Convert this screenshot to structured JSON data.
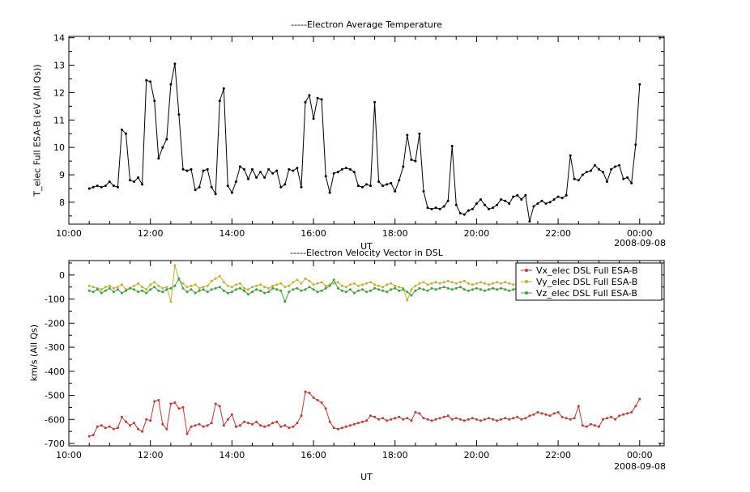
{
  "colors": {
    "background": "#ffffff",
    "frame": "#000000"
  },
  "chart_data": [
    {
      "type": "line",
      "title": "-----Electron Average Temperature",
      "ylabel": "T_elec Full ESA-B (eV (All Qs))",
      "xlabel": "UT",
      "date_label": "2008-09-08",
      "xmin": 10,
      "xmax": 24.6,
      "ymin": 7.2,
      "ymax": 14.05,
      "xticks": [
        10,
        12,
        14,
        16,
        18,
        20,
        22,
        24
      ],
      "xtick_labels": [
        "10:00",
        "12:00",
        "14:00",
        "16:00",
        "18:00",
        "20:00",
        "22:00",
        "00:00"
      ],
      "yticks": [
        8,
        9,
        10,
        11,
        12,
        13,
        14
      ],
      "ytick_labels": [
        "8",
        "9",
        "10",
        "11",
        "12",
        "13",
        "14"
      ],
      "xminor_step": 0.5,
      "yminor_step": 0.5,
      "legend": null,
      "series": [
        {
          "name": "T_elec Full ESA-B",
          "color": "#000000",
          "tstart": 10.5,
          "tstep": 0.1,
          "values": [
            8.5,
            8.55,
            8.6,
            8.55,
            8.6,
            8.75,
            8.6,
            8.55,
            10.65,
            10.5,
            8.8,
            8.75,
            8.9,
            8.65,
            12.45,
            12.4,
            11.7,
            9.6,
            10.0,
            10.3,
            12.3,
            13.05,
            11.2,
            9.2,
            9.15,
            9.2,
            8.45,
            8.55,
            9.15,
            9.2,
            8.55,
            8.3,
            11.7,
            12.15,
            8.6,
            8.35,
            8.75,
            9.3,
            9.2,
            8.85,
            9.2,
            8.9,
            9.1,
            8.9,
            9.2,
            9.05,
            9.15,
            8.55,
            8.65,
            9.2,
            9.15,
            9.25,
            8.55,
            11.65,
            11.9,
            11.05,
            11.8,
            11.75,
            8.95,
            8.35,
            9.05,
            9.1,
            9.2,
            9.25,
            9.2,
            9.1,
            8.6,
            8.55,
            8.65,
            8.6,
            11.65,
            8.75,
            8.6,
            8.65,
            8.7,
            8.4,
            8.8,
            9.3,
            10.45,
            9.55,
            9.5,
            10.5,
            8.4,
            7.8,
            7.75,
            7.8,
            7.75,
            7.85,
            8.05,
            10.05,
            7.9,
            7.6,
            7.55,
            7.7,
            7.75,
            7.95,
            8.1,
            7.9,
            7.75,
            7.8,
            7.9,
            8.1,
            8.05,
            7.95,
            8.2,
            8.25,
            8.1,
            8.25,
            7.3,
            7.85,
            7.95,
            8.05,
            7.95,
            8.0,
            8.1,
            8.2,
            8.15,
            8.25,
            9.7,
            8.85,
            8.8,
            9.0,
            9.1,
            9.15,
            9.35,
            9.2,
            9.1,
            8.75,
            9.2,
            9.3,
            9.35,
            8.85,
            8.9,
            8.7,
            10.1,
            12.3
          ]
        }
      ]
    },
    {
      "type": "line",
      "title": "-----Electron Velocity Vector in DSL",
      "ylabel": "km/s (All Qs)",
      "xlabel": "UT",
      "date_label": "2008-09-08",
      "xmin": 10,
      "xmax": 24.6,
      "ymin": -710,
      "ymax": 60,
      "xticks": [
        10,
        12,
        14,
        16,
        18,
        20,
        22,
        24
      ],
      "xtick_labels": [
        "10:00",
        "12:00",
        "14:00",
        "16:00",
        "18:00",
        "20:00",
        "22:00",
        "00:00"
      ],
      "yticks": [
        0,
        -100,
        -200,
        -300,
        -400,
        -500,
        -600,
        -700
      ],
      "ytick_labels": [
        "0",
        "-100",
        "-200",
        "-300",
        "-400",
        "-500",
        "-600",
        "-700"
      ],
      "xminor_step": 0.5,
      "yminor_step": 50,
      "legend": {
        "position": "top-right"
      },
      "series": [
        {
          "name": "Vx_elec DSL Full ESA-B",
          "color": "#bd3a3a",
          "tstart": 10.5,
          "tstep": 0.1,
          "values": [
            -670,
            -665,
            -630,
            -625,
            -635,
            -630,
            -640,
            -635,
            -590,
            -610,
            -625,
            -615,
            -640,
            -650,
            -600,
            -605,
            -525,
            -520,
            -620,
            -640,
            -535,
            -530,
            -555,
            -550,
            -660,
            -630,
            -625,
            -620,
            -630,
            -625,
            -615,
            -535,
            -545,
            -625,
            -600,
            -580,
            -630,
            -625,
            -610,
            -615,
            -620,
            -610,
            -625,
            -630,
            -625,
            -615,
            -610,
            -630,
            -625,
            -635,
            -630,
            -615,
            -585,
            -485,
            -490,
            -510,
            -520,
            -530,
            -555,
            -610,
            -635,
            -640,
            -635,
            -630,
            -625,
            -620,
            -615,
            -610,
            -605,
            -585,
            -590,
            -600,
            -595,
            -605,
            -600,
            -595,
            -590,
            -600,
            -595,
            -605,
            -570,
            -575,
            -595,
            -600,
            -605,
            -600,
            -595,
            -590,
            -585,
            -600,
            -595,
            -600,
            -605,
            -600,
            -595,
            -600,
            -605,
            -600,
            -595,
            -600,
            -605,
            -600,
            -595,
            -600,
            -595,
            -590,
            -600,
            -595,
            -585,
            -580,
            -570,
            -575,
            -580,
            -585,
            -575,
            -570,
            -590,
            -595,
            -600,
            -595,
            -545,
            -625,
            -630,
            -620,
            -625,
            -630,
            -600,
            -595,
            -590,
            -600,
            -585,
            -580,
            -575,
            -570,
            -545,
            -515
          ]
        },
        {
          "name": "Vy_elec DSL Full ESA-B",
          "color": "#c2b22e",
          "tstart": 10.5,
          "tstep": 0.1,
          "values": [
            -45,
            -50,
            -55,
            -60,
            -50,
            -45,
            -55,
            -50,
            -40,
            -60,
            -55,
            -45,
            -35,
            -50,
            -60,
            -40,
            -30,
            -45,
            -55,
            -50,
            -110,
            40,
            -20,
            -35,
            -50,
            -45,
            -40,
            -55,
            -50,
            -45,
            -25,
            -15,
            -5,
            -30,
            -45,
            -50,
            -40,
            -35,
            -55,
            -60,
            -50,
            -45,
            -40,
            -50,
            -55,
            -45,
            -40,
            -35,
            -50,
            -45,
            -30,
            -20,
            -35,
            -15,
            -25,
            -40,
            -35,
            -30,
            -45,
            -40,
            -35,
            -30,
            -45,
            -50,
            -40,
            -35,
            -45,
            -40,
            -35,
            -30,
            -40,
            -45,
            -50,
            -40,
            -35,
            -45,
            -50,
            -55,
            -105,
            -60,
            -45,
            -35,
            -30,
            -40,
            -35,
            -30,
            -35,
            -30,
            -25,
            -30,
            -35,
            -30,
            -25,
            -35,
            -40,
            -35,
            -30,
            -35,
            -40,
            -35,
            -30,
            -35,
            -30,
            -35,
            -40,
            -35,
            -30,
            -25,
            -35,
            -30,
            -35,
            -40,
            -45,
            -40,
            -35,
            -30,
            -35,
            -40,
            -35,
            -30,
            -35,
            -40,
            -45,
            -50,
            -45,
            -40,
            -35,
            -40,
            -45,
            -40,
            -35,
            -40,
            -45,
            -40,
            -35,
            -40
          ]
        },
        {
          "name": "Vz_elec DSL Full ESA-B",
          "color": "#3f9e3f",
          "tstart": 10.5,
          "tstep": 0.1,
          "values": [
            -65,
            -70,
            -60,
            -75,
            -65,
            -55,
            -70,
            -60,
            -75,
            -65,
            -55,
            -60,
            -70,
            -65,
            -75,
            -60,
            -50,
            -65,
            -70,
            -60,
            -55,
            -45,
            -15,
            -55,
            -70,
            -60,
            -75,
            -65,
            -60,
            -70,
            -60,
            -55,
            -50,
            -65,
            -75,
            -70,
            -60,
            -55,
            -65,
            -80,
            -70,
            -60,
            -65,
            -75,
            -70,
            -55,
            -60,
            -65,
            -110,
            -70,
            -60,
            -55,
            -65,
            -60,
            -50,
            -60,
            -70,
            -65,
            -55,
            -45,
            -20,
            -55,
            -65,
            -70,
            -60,
            -75,
            -65,
            -60,
            -70,
            -65,
            -55,
            -60,
            -65,
            -70,
            -60,
            -55,
            -65,
            -60,
            -70,
            -85,
            -65,
            -55,
            -60,
            -65,
            -55,
            -60,
            -55,
            -50,
            -55,
            -60,
            -55,
            -50,
            -60,
            -65,
            -60,
            -55,
            -60,
            -65,
            -60,
            -55,
            -60,
            -55,
            -60,
            -65,
            -60,
            -55,
            -50,
            -60,
            -55,
            -60,
            -65,
            -70,
            -65,
            -60,
            -55,
            -60,
            -65,
            -60,
            -55,
            -60,
            -65,
            -70,
            -75,
            -70,
            -65,
            -60,
            -65,
            -70,
            -65,
            -60,
            -65,
            -70,
            -65,
            -60,
            -65,
            -60
          ]
        }
      ]
    }
  ]
}
